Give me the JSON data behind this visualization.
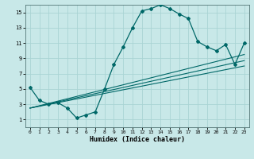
{
  "xlabel": "Humidex (Indice chaleur)",
  "bg_color": "#c8e8e8",
  "grid_color": "#aad4d4",
  "line_color": "#006868",
  "xlim": [
    -0.5,
    23.5
  ],
  "ylim": [
    0,
    16
  ],
  "xticks": [
    0,
    1,
    2,
    3,
    4,
    5,
    6,
    7,
    8,
    9,
    10,
    11,
    12,
    13,
    14,
    15,
    16,
    17,
    18,
    19,
    20,
    21,
    22,
    23
  ],
  "yticks": [
    1,
    3,
    5,
    7,
    9,
    11,
    13,
    15
  ],
  "main_x": [
    0,
    1,
    2,
    3,
    4,
    5,
    6,
    7,
    8,
    9,
    10,
    11,
    12,
    13,
    14,
    15,
    16,
    17,
    18,
    19,
    20,
    21,
    22,
    23
  ],
  "main_y": [
    5.2,
    3.5,
    3.0,
    3.2,
    2.5,
    1.2,
    1.6,
    2.0,
    5.0,
    8.2,
    10.5,
    13.0,
    15.2,
    15.5,
    16.0,
    15.5,
    14.8,
    14.2,
    11.2,
    10.5,
    10.0,
    10.8,
    8.2,
    11.0
  ],
  "line2_x": [
    0,
    23
  ],
  "line2_y": [
    2.5,
    8.0
  ],
  "line3_x": [
    0,
    23
  ],
  "line3_y": [
    2.5,
    8.7
  ],
  "line4_x": [
    0,
    23
  ],
  "line4_y": [
    2.5,
    9.5
  ]
}
